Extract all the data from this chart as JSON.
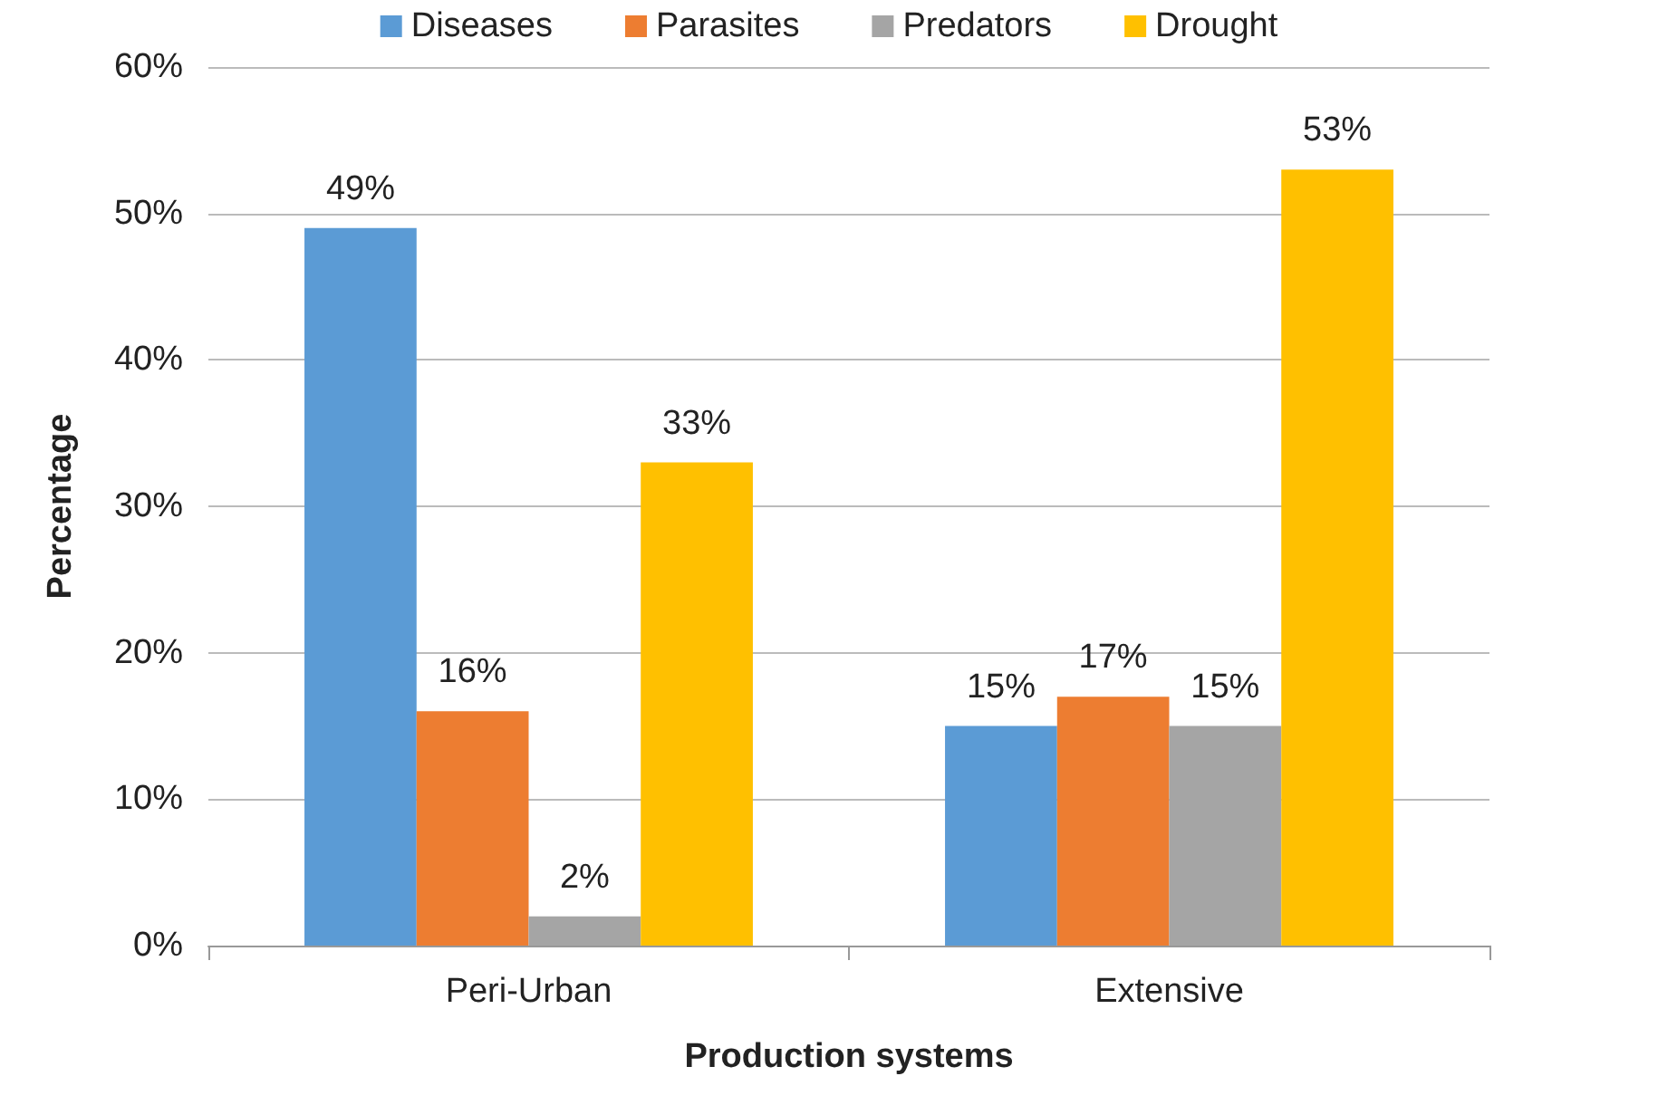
{
  "chart_data": {
    "type": "bar",
    "xlabel": "Production systems",
    "ylabel": "Percentage",
    "categories": [
      "Peri-Urban",
      "Extensive"
    ],
    "series": [
      {
        "name": "Diseases",
        "color": "#5b9bd5",
        "values": [
          49,
          15
        ],
        "value_labels": [
          "49%",
          "15%"
        ]
      },
      {
        "name": "Parasites",
        "color": "#ed7d31",
        "values": [
          16,
          17
        ],
        "value_labels": [
          "16%",
          "17%"
        ]
      },
      {
        "name": "Predators",
        "color": "#a5a5a5",
        "values": [
          2,
          15
        ],
        "value_labels": [
          "2%",
          "15%"
        ]
      },
      {
        "name": "Drought",
        "color": "#ffc000",
        "values": [
          33,
          53
        ],
        "value_labels": [
          "33%",
          "53%"
        ]
      }
    ],
    "ylim": [
      0,
      60
    ],
    "yticks": [
      {
        "value": 0,
        "label": "0%"
      },
      {
        "value": 10,
        "label": "10%"
      },
      {
        "value": 20,
        "label": "20%"
      },
      {
        "value": 30,
        "label": "30%"
      },
      {
        "value": 40,
        "label": "40%"
      },
      {
        "value": 50,
        "label": "50%"
      },
      {
        "value": 60,
        "label": "60%"
      }
    ],
    "grid": "y",
    "legend": "top"
  }
}
